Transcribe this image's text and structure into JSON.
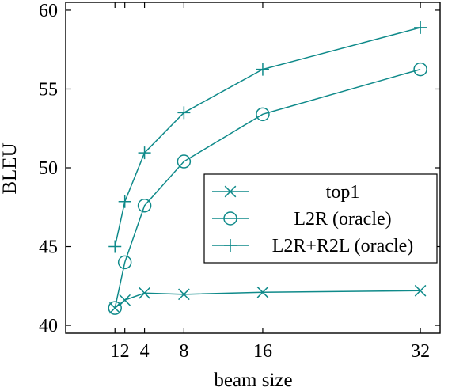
{
  "chart_data": {
    "type": "line",
    "title": "",
    "xlabel": "beam size",
    "ylabel": "BLEU",
    "xlim": [
      -4,
      34
    ],
    "ylim": [
      39.5,
      60.5
    ],
    "xticks": [
      1,
      2,
      4,
      8,
      16,
      32
    ],
    "xtick_labels": [
      "1",
      "2",
      "4",
      "8",
      "16",
      "32"
    ],
    "yticks": [
      40,
      45,
      50,
      55,
      60
    ],
    "ytick_labels": [
      "40",
      "45",
      "50",
      "55",
      "60"
    ],
    "grid": false,
    "legend_position": "center-right",
    "line_color": "#0f8a8a",
    "series": [
      {
        "name": "top1",
        "marker": "x",
        "x": [
          1,
          2,
          4,
          8,
          16,
          32
        ],
        "y": [
          41.1,
          41.6,
          42.05,
          41.97,
          42.1,
          42.2
        ]
      },
      {
        "name": "L2R (oracle)",
        "marker": "circle",
        "x": [
          1,
          2,
          4,
          8,
          16,
          32
        ],
        "y": [
          41.1,
          44.0,
          47.6,
          50.4,
          53.4,
          56.25
        ]
      },
      {
        "name": "L2R+R2L (oracle)",
        "marker": "plus",
        "x": [
          1,
          2,
          4,
          8,
          16,
          32
        ],
        "y": [
          45.0,
          47.85,
          50.95,
          53.5,
          56.25,
          58.9
        ]
      }
    ]
  }
}
